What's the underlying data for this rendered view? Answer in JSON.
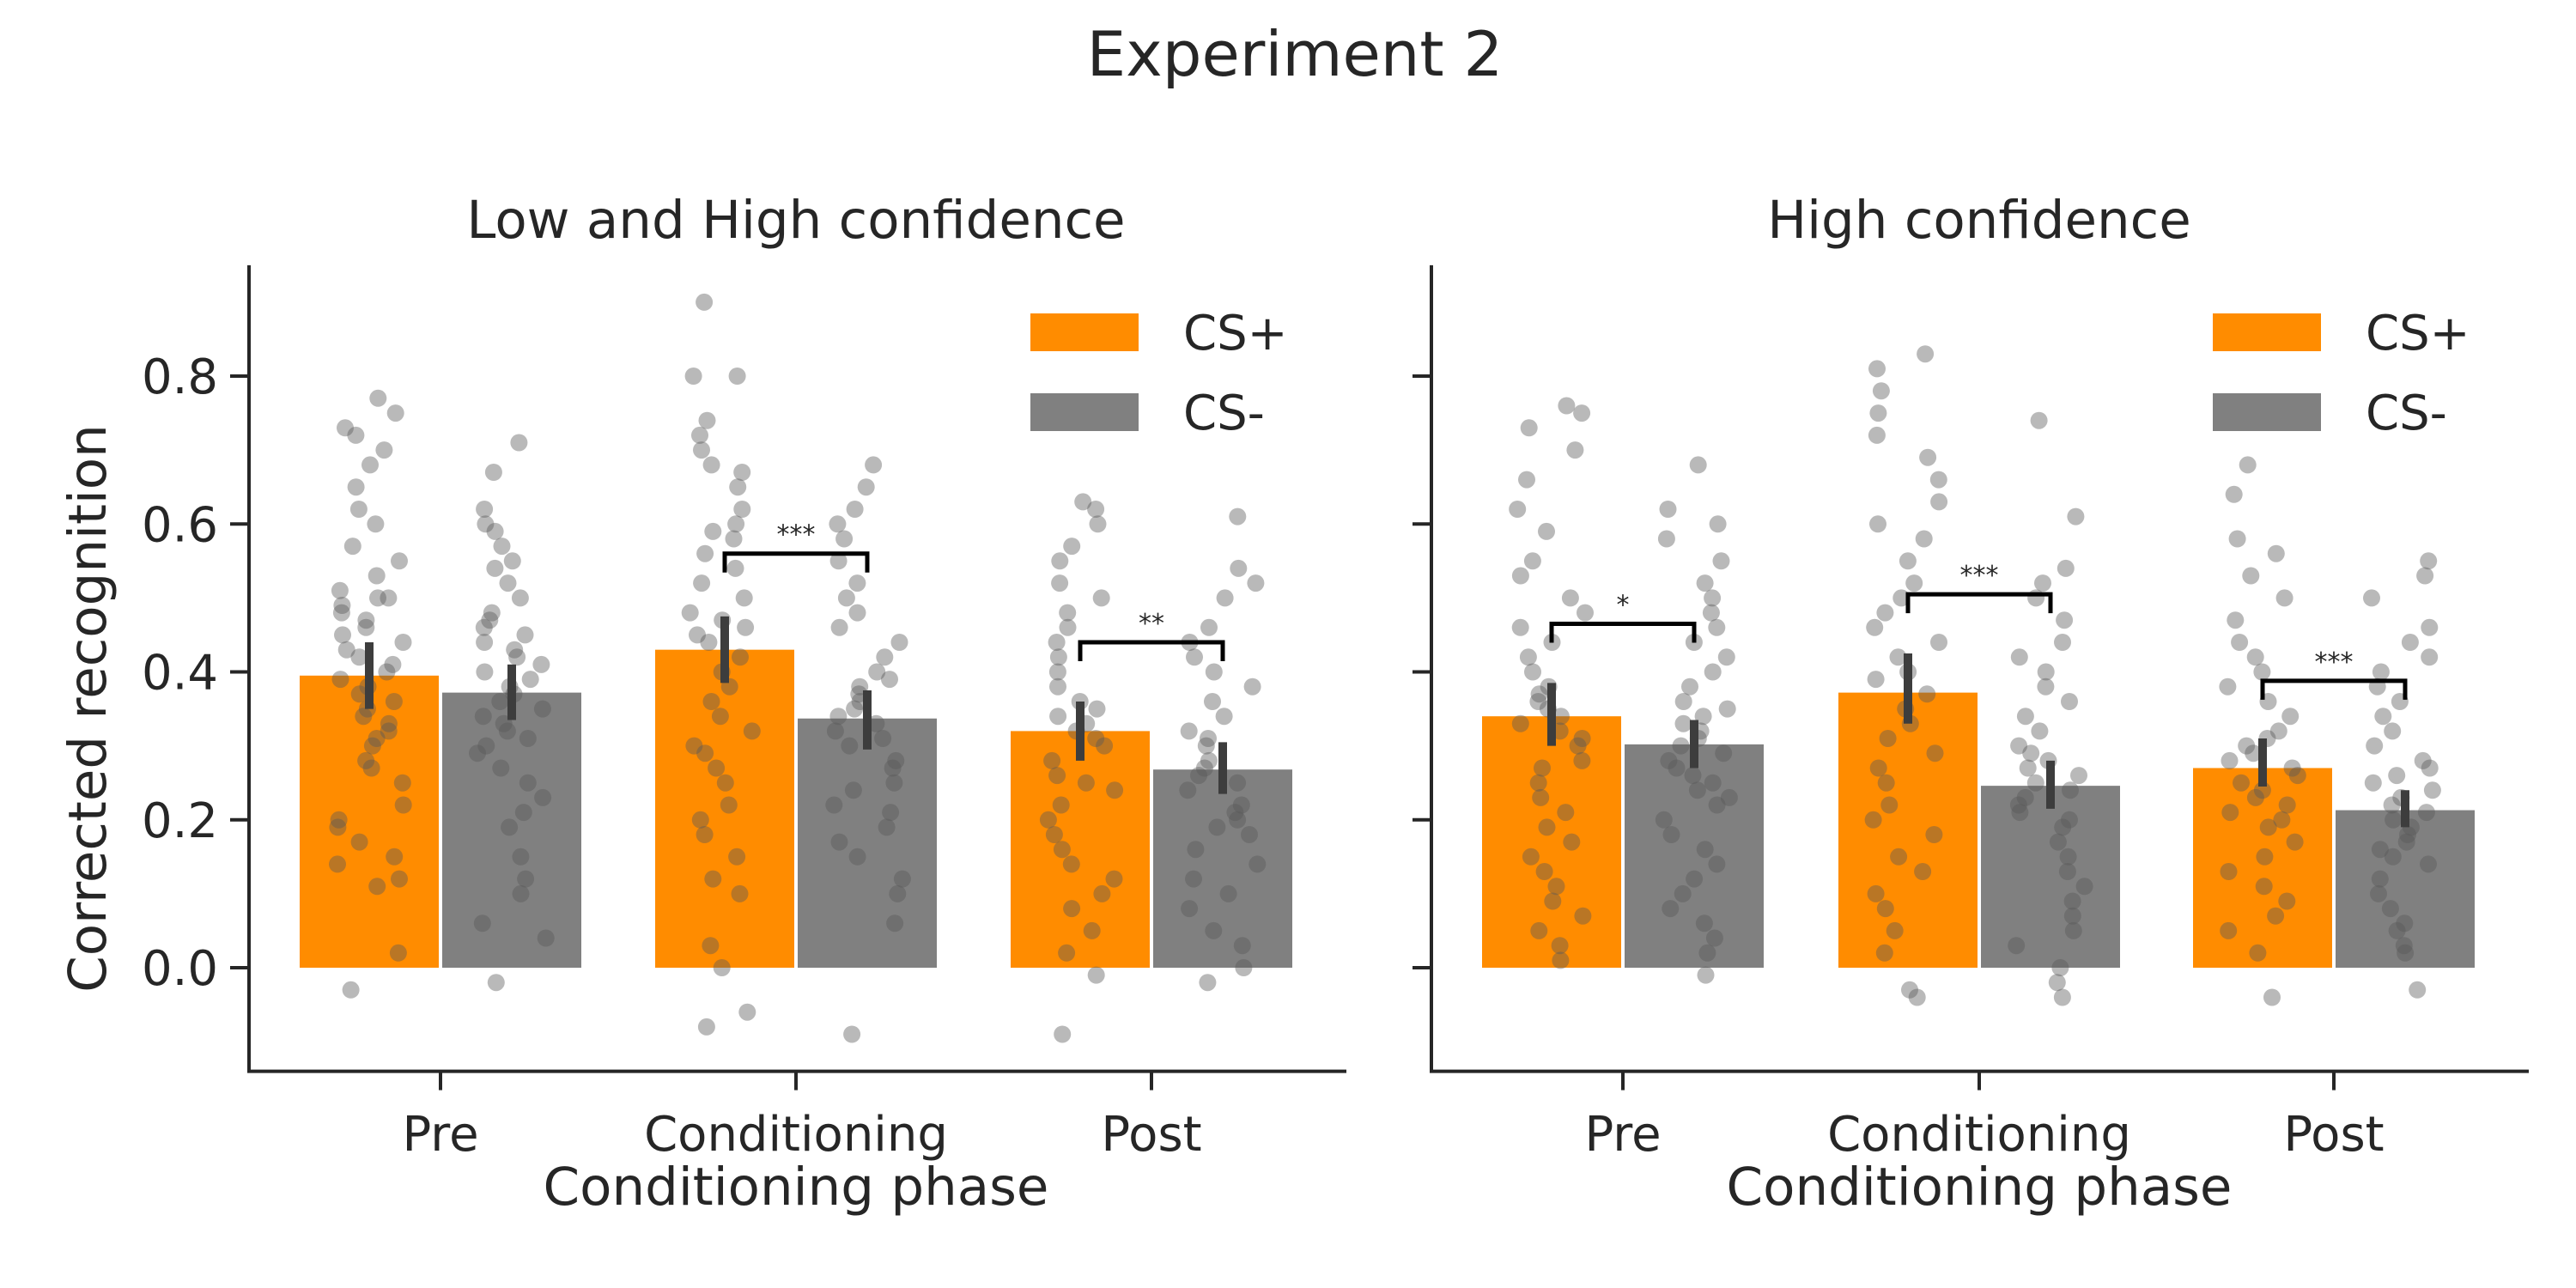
{
  "figure": {
    "title": "Experiment 2"
  },
  "style": {
    "cs_plus_color": "#FF8C00",
    "cs_minus_color": "#808080",
    "point_color": "#595959",
    "axis_color": "#262626"
  },
  "chart_data": [
    {
      "type": "bar",
      "title": "Low and High confidence",
      "xlabel": "Conditioning phase",
      "ylabel": "Corrected recognition",
      "categories": [
        "Pre",
        "Conditioning",
        "Post"
      ],
      "ylim": [
        -0.14,
        0.95
      ],
      "yticks": [
        "0.0",
        "0.2",
        "0.4",
        "0.6",
        "0.8"
      ],
      "legend": {
        "position": "top-right"
      },
      "series": [
        {
          "name": "CS+",
          "color": "#FF8C00",
          "values": [
            0.395,
            0.43,
            0.32
          ],
          "ci": [
            [
              0.35,
              0.44
            ],
            [
              0.385,
              0.475
            ],
            [
              0.28,
              0.36
            ]
          ],
          "points": [
            [
              -0.03,
              0.02,
              0.11,
              0.12,
              0.14,
              0.15,
              0.17,
              0.19,
              0.2,
              0.22,
              0.25,
              0.27,
              0.28,
              0.3,
              0.31,
              0.32,
              0.33,
              0.34,
              0.35,
              0.36,
              0.37,
              0.38,
              0.39,
              0.4,
              0.41,
              0.42,
              0.43,
              0.44,
              0.45,
              0.46,
              0.47,
              0.48,
              0.49,
              0.5,
              0.5,
              0.51,
              0.53,
              0.55,
              0.57,
              0.6,
              0.62,
              0.65,
              0.68,
              0.7,
              0.72,
              0.73,
              0.75,
              0.77
            ],
            [
              -0.08,
              -0.06,
              0.0,
              0.03,
              0.1,
              0.12,
              0.15,
              0.18,
              0.2,
              0.22,
              0.25,
              0.27,
              0.29,
              0.3,
              0.32,
              0.34,
              0.36,
              0.38,
              0.4,
              0.42,
              0.44,
              0.45,
              0.46,
              0.47,
              0.48,
              0.5,
              0.52,
              0.54,
              0.56,
              0.58,
              0.59,
              0.6,
              0.62,
              0.65,
              0.67,
              0.68,
              0.7,
              0.72,
              0.74,
              0.8,
              0.8,
              0.9
            ],
            [
              -0.09,
              -0.01,
              0.02,
              0.05,
              0.08,
              0.1,
              0.12,
              0.14,
              0.16,
              0.18,
              0.2,
              0.22,
              0.24,
              0.25,
              0.26,
              0.28,
              0.3,
              0.31,
              0.32,
              0.33,
              0.34,
              0.35,
              0.36,
              0.38,
              0.4,
              0.42,
              0.44,
              0.46,
              0.48,
              0.5,
              0.52,
              0.55,
              0.57,
              0.6,
              0.62,
              0.63
            ]
          ]
        },
        {
          "name": "CS-",
          "color": "#808080",
          "values": [
            0.372,
            0.337,
            0.268
          ],
          "ci": [
            [
              0.335,
              0.41
            ],
            [
              0.295,
              0.375
            ],
            [
              0.235,
              0.305
            ]
          ],
          "points": [
            [
              -0.02,
              0.04,
              0.06,
              0.1,
              0.12,
              0.15,
              0.19,
              0.21,
              0.23,
              0.25,
              0.27,
              0.29,
              0.3,
              0.31,
              0.32,
              0.33,
              0.34,
              0.35,
              0.36,
              0.37,
              0.38,
              0.39,
              0.4,
              0.41,
              0.42,
              0.43,
              0.44,
              0.45,
              0.46,
              0.47,
              0.48,
              0.5,
              0.52,
              0.54,
              0.55,
              0.57,
              0.59,
              0.6,
              0.62,
              0.67,
              0.71
            ],
            [
              -0.09,
              0.06,
              0.1,
              0.12,
              0.15,
              0.17,
              0.19,
              0.21,
              0.22,
              0.24,
              0.25,
              0.27,
              0.28,
              0.3,
              0.31,
              0.32,
              0.33,
              0.34,
              0.35,
              0.36,
              0.37,
              0.38,
              0.39,
              0.4,
              0.42,
              0.44,
              0.46,
              0.48,
              0.5,
              0.52,
              0.55,
              0.58,
              0.6,
              0.62,
              0.65,
              0.68
            ],
            [
              -0.02,
              0.0,
              0.03,
              0.05,
              0.08,
              0.1,
              0.12,
              0.14,
              0.16,
              0.18,
              0.19,
              0.2,
              0.21,
              0.22,
              0.24,
              0.25,
              0.26,
              0.27,
              0.28,
              0.3,
              0.31,
              0.32,
              0.34,
              0.36,
              0.38,
              0.4,
              0.42,
              0.44,
              0.46,
              0.5,
              0.52,
              0.54,
              0.61
            ]
          ]
        }
      ],
      "annotations": [
        {
          "category": "Conditioning",
          "text": "***",
          "y": 0.56
        },
        {
          "category": "Post",
          "text": "**",
          "y": 0.44
        }
      ]
    },
    {
      "type": "bar",
      "title": "High confidence",
      "xlabel": "Conditioning phase",
      "ylabel": "",
      "categories": [
        "Pre",
        "Conditioning",
        "Post"
      ],
      "ylim": [
        -0.14,
        0.95
      ],
      "yticks": [],
      "legend": {
        "position": "top-right"
      },
      "series": [
        {
          "name": "CS+",
          "color": "#FF8C00",
          "values": [
            0.34,
            0.372,
            0.27
          ],
          "ci": [
            [
              0.3,
              0.385
            ],
            [
              0.33,
              0.425
            ],
            [
              0.245,
              0.31
            ]
          ],
          "points": [
            [
              0.01,
              0.03,
              0.05,
              0.07,
              0.09,
              0.11,
              0.13,
              0.15,
              0.17,
              0.19,
              0.21,
              0.23,
              0.25,
              0.27,
              0.28,
              0.3,
              0.31,
              0.32,
              0.33,
              0.34,
              0.35,
              0.36,
              0.37,
              0.38,
              0.4,
              0.42,
              0.44,
              0.46,
              0.48,
              0.5,
              0.53,
              0.55,
              0.59,
              0.62,
              0.66,
              0.7,
              0.73,
              0.75,
              0.76
            ],
            [
              -0.04,
              -0.03,
              0.02,
              0.05,
              0.08,
              0.1,
              0.13,
              0.15,
              0.18,
              0.2,
              0.22,
              0.25,
              0.27,
              0.29,
              0.31,
              0.33,
              0.35,
              0.37,
              0.39,
              0.4,
              0.42,
              0.44,
              0.46,
              0.48,
              0.5,
              0.52,
              0.55,
              0.58,
              0.6,
              0.63,
              0.66,
              0.69,
              0.72,
              0.75,
              0.78,
              0.81,
              0.83
            ],
            [
              -0.04,
              0.02,
              0.05,
              0.07,
              0.09,
              0.11,
              0.13,
              0.15,
              0.17,
              0.19,
              0.2,
              0.21,
              0.22,
              0.23,
              0.24,
              0.25,
              0.26,
              0.27,
              0.28,
              0.29,
              0.3,
              0.31,
              0.32,
              0.34,
              0.36,
              0.38,
              0.4,
              0.42,
              0.44,
              0.47,
              0.5,
              0.53,
              0.56,
              0.58,
              0.64,
              0.68
            ]
          ]
        },
        {
          "name": "CS-",
          "color": "#808080",
          "values": [
            0.302,
            0.246,
            0.213
          ],
          "ci": [
            [
              0.27,
              0.335
            ],
            [
              0.215,
              0.28
            ],
            [
              0.19,
              0.24
            ]
          ],
          "points": [
            [
              -0.01,
              0.02,
              0.04,
              0.06,
              0.08,
              0.1,
              0.12,
              0.14,
              0.16,
              0.18,
              0.2,
              0.22,
              0.23,
              0.24,
              0.25,
              0.26,
              0.27,
              0.28,
              0.29,
              0.3,
              0.31,
              0.32,
              0.33,
              0.34,
              0.35,
              0.36,
              0.38,
              0.4,
              0.42,
              0.44,
              0.46,
              0.48,
              0.5,
              0.52,
              0.55,
              0.58,
              0.6,
              0.62,
              0.68
            ],
            [
              -0.04,
              -0.02,
              0.0,
              0.03,
              0.05,
              0.07,
              0.09,
              0.11,
              0.13,
              0.15,
              0.17,
              0.19,
              0.2,
              0.21,
              0.22,
              0.23,
              0.24,
              0.25,
              0.26,
              0.27,
              0.28,
              0.29,
              0.3,
              0.32,
              0.34,
              0.36,
              0.38,
              0.4,
              0.42,
              0.44,
              0.47,
              0.5,
              0.52,
              0.54,
              0.61,
              0.74
            ],
            [
              -0.03,
              0.02,
              0.03,
              0.05,
              0.06,
              0.08,
              0.1,
              0.12,
              0.14,
              0.15,
              0.16,
              0.17,
              0.18,
              0.19,
              0.2,
              0.21,
              0.22,
              0.23,
              0.24,
              0.25,
              0.26,
              0.27,
              0.28,
              0.3,
              0.32,
              0.34,
              0.36,
              0.38,
              0.4,
              0.42,
              0.44,
              0.46,
              0.5,
              0.53,
              0.55
            ]
          ]
        }
      ],
      "annotations": [
        {
          "category": "Pre",
          "text": "*",
          "y": 0.465
        },
        {
          "category": "Conditioning",
          "text": "***",
          "y": 0.505
        },
        {
          "category": "Post",
          "text": "***",
          "y": 0.388
        }
      ]
    }
  ]
}
